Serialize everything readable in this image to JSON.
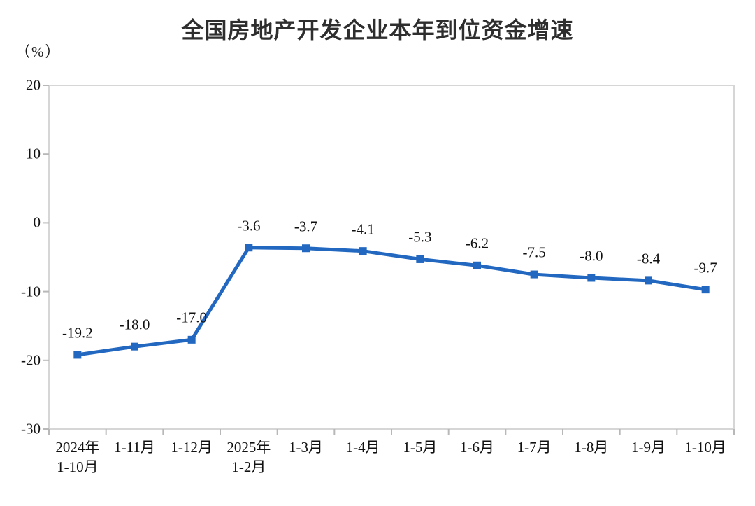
{
  "title": "全国房地产开发企业本年到位资金增速",
  "unit_label": "（%）",
  "chart_data": {
    "type": "line",
    "title": "全国房地产开发企业本年到位资金增速",
    "ylabel": "（%）",
    "categories": [
      "2024年\n1-10月",
      "1-11月",
      "1-12月",
      "2025年\n1-2月",
      "1-3月",
      "1-4月",
      "1-5月",
      "1-6月",
      "1-7月",
      "1-8月",
      "1-9月",
      "1-10月"
    ],
    "values": [
      -19.2,
      -18.0,
      -17.0,
      -3.6,
      -3.7,
      -4.1,
      -5.3,
      -6.2,
      -7.5,
      -8.0,
      -8.4,
      -9.7
    ],
    "data_labels": [
      "-19.2",
      "-18.0",
      "-17.0",
      "-3.6",
      "-3.7",
      "-4.1",
      "-5.3",
      "-6.2",
      "-7.5",
      "-8.0",
      "-8.4",
      "-9.7"
    ],
    "ylim": [
      -30,
      20
    ],
    "yticks": [
      20,
      10,
      0,
      -10,
      -20,
      -30
    ],
    "grid": false,
    "legend": "none",
    "marker": "square"
  },
  "colors": {
    "line": "#2268c0",
    "marker": "#2268c0",
    "axis_frame": "#d6d6d6",
    "tick": "#b8b8b8",
    "text": "#111111",
    "title_text": "#2e2e2e",
    "background": "#ffffff"
  }
}
